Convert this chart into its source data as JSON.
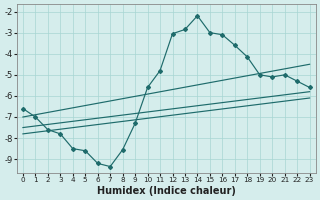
{
  "xlabel": "Humidex (Indice chaleur)",
  "x": [
    0,
    1,
    2,
    3,
    4,
    5,
    6,
    7,
    8,
    9,
    10,
    11,
    12,
    13,
    14,
    15,
    16,
    17,
    18,
    19,
    20,
    21,
    22,
    23
  ],
  "main_curve": [
    -6.6,
    -7.0,
    -7.6,
    -7.8,
    -8.5,
    -8.6,
    -9.2,
    -9.35,
    -8.55,
    -7.3,
    -5.6,
    -4.8,
    -3.05,
    -2.85,
    -2.2,
    -3.0,
    -3.1,
    -3.6,
    -4.15,
    -5.0,
    -5.1,
    -5.0,
    -5.3,
    -5.6
  ],
  "line1": [
    -7.0,
    -4.5
  ],
  "line2": [
    -7.5,
    -5.8
  ],
  "line3": [
    -7.8,
    -6.1
  ],
  "ylim": [
    -9.65,
    -1.65
  ],
  "xlim": [
    -0.5,
    23.5
  ],
  "yticks": [
    -9,
    -8,
    -7,
    -6,
    -5,
    -4,
    -3,
    -2
  ],
  "xticks": [
    0,
    1,
    2,
    3,
    4,
    5,
    6,
    7,
    8,
    9,
    10,
    11,
    12,
    13,
    14,
    15,
    16,
    17,
    18,
    19,
    20,
    21,
    22,
    23
  ],
  "line_color": "#1e6b6b",
  "bg_color": "#d5edec",
  "grid_color": "#a8d5d3",
  "spine_color": "#888888"
}
